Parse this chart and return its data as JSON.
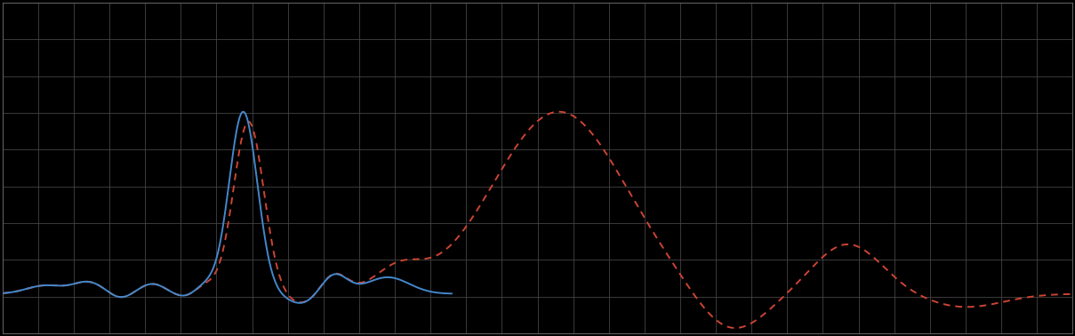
{
  "background_color": "#000000",
  "plot_bg_color": "#000000",
  "outer_bg_color": "#000000",
  "grid_color": "#444444",
  "spine_color": "#666666",
  "line1_color": "#4488cc",
  "line2_color": "#cc4433",
  "line1_style": "-",
  "line2_style": "--",
  "line_width": 1.4,
  "figsize": [
    12.09,
    3.78
  ],
  "dpi": 100,
  "xlim": [
    0,
    100
  ],
  "ylim": [
    0,
    10
  ],
  "n_gridlines_x": 30,
  "n_gridlines_y": 9
}
